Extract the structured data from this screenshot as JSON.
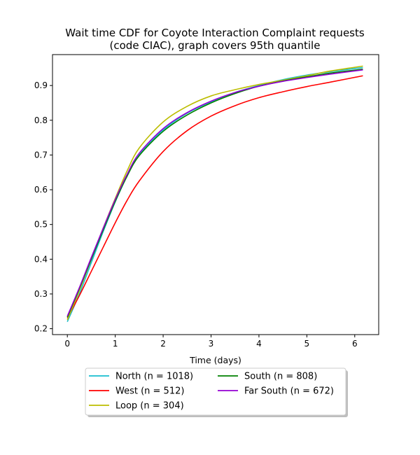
{
  "chart_data": {
    "type": "line",
    "title_lines": [
      "Wait time CDF for Coyote Interaction Complaint  requests",
      "(code CIAC), graph covers 95th quantile"
    ],
    "xlabel": "Time (days)",
    "ylabel": "",
    "xlim": [
      -0.31,
      6.5
    ],
    "ylim": [
      0.183,
      0.989
    ],
    "xticks": [
      0,
      1,
      2,
      3,
      4,
      5,
      6
    ],
    "xtick_labels": [
      "0",
      "1",
      "2",
      "3",
      "4",
      "5",
      "6"
    ],
    "yticks": [
      0.2,
      0.3,
      0.4,
      0.5,
      0.6,
      0.7,
      0.8,
      0.9
    ],
    "ytick_labels": [
      "0.2",
      "0.3",
      "0.4",
      "0.5",
      "0.6",
      "0.7",
      "0.8",
      "0.9"
    ],
    "grid": false,
    "legend_position": "below-center",
    "series": [
      {
        "name": "North (n = 1018)",
        "color": "#17becf",
        "x": [
          0,
          0.25,
          0.5,
          0.75,
          1,
          1.25,
          1.5,
          2,
          2.5,
          3,
          3.5,
          4,
          4.5,
          5,
          5.5,
          6.17
        ],
        "y": [
          0.22,
          0.3,
          0.39,
          0.48,
          0.565,
          0.64,
          0.7,
          0.772,
          0.82,
          0.853,
          0.88,
          0.9,
          0.917,
          0.93,
          0.94,
          0.952
        ]
      },
      {
        "name": "West (n = 512)",
        "color": "#ff0000",
        "x": [
          0,
          0.25,
          0.5,
          0.75,
          1,
          1.25,
          1.5,
          2,
          2.5,
          3,
          3.5,
          4,
          4.5,
          5,
          5.5,
          6.17
        ],
        "y": [
          0.23,
          0.295,
          0.365,
          0.435,
          0.505,
          0.57,
          0.625,
          0.71,
          0.77,
          0.812,
          0.842,
          0.865,
          0.882,
          0.897,
          0.91,
          0.928
        ]
      },
      {
        "name": "Loop (n = 304)",
        "color": "#bcbd00",
        "x": [
          0,
          0.25,
          0.5,
          0.75,
          1,
          1.25,
          1.5,
          2,
          2.5,
          3,
          3.5,
          4,
          4.5,
          5,
          5.5,
          6.17
        ],
        "y": [
          0.225,
          0.31,
          0.4,
          0.49,
          0.575,
          0.655,
          0.72,
          0.795,
          0.84,
          0.87,
          0.888,
          0.903,
          0.915,
          0.928,
          0.942,
          0.956
        ]
      },
      {
        "name": "South (n = 808)",
        "color": "#008000",
        "x": [
          0,
          0.25,
          0.5,
          0.75,
          1,
          1.25,
          1.5,
          2,
          2.5,
          3,
          3.5,
          4,
          4.5,
          5,
          5.5,
          6.17
        ],
        "y": [
          0.233,
          0.315,
          0.4,
          0.485,
          0.567,
          0.64,
          0.698,
          0.768,
          0.815,
          0.85,
          0.877,
          0.898,
          0.913,
          0.925,
          0.936,
          0.947
        ]
      },
      {
        "name": "Far South (n = 672)",
        "color": "#9400d3",
        "x": [
          0,
          0.25,
          0.5,
          0.75,
          1,
          1.25,
          1.5,
          2,
          2.5,
          3,
          3.5,
          4,
          4.5,
          5,
          5.5,
          6.17
        ],
        "y": [
          0.236,
          0.318,
          0.405,
          0.49,
          0.572,
          0.645,
          0.705,
          0.776,
          0.822,
          0.855,
          0.88,
          0.898,
          0.912,
          0.923,
          0.933,
          0.945
        ]
      }
    ]
  }
}
